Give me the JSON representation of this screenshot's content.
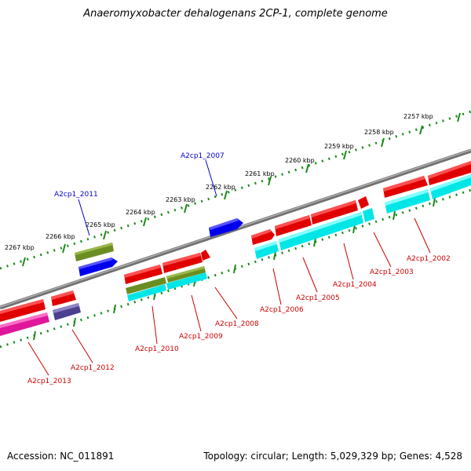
{
  "title": "Anaeromyxobacter dehalogenans 2CP-1, complete genome",
  "accession": "Accession: NC_011891",
  "summary": "Topology: circular; Length: 5,029,329 bp; Genes: 4,528",
  "colors": {
    "backbone": "#808080",
    "ticks": "#1a8a1a",
    "red": "#e00000",
    "cyan": "#00e6e6",
    "olive": "#6b8e23",
    "blue": "#0000ee",
    "magenta": "#e0179a",
    "slate": "#4b3f8f",
    "label_red": "#cc0000",
    "label_blue": "#0000cc"
  },
  "kbp_labels": [
    "2257 kbp",
    "2258 kbp",
    "2259 kbp",
    "2260 kbp",
    "2261 kbp",
    "2262 kbp",
    "2263 kbp",
    "2264 kbp",
    "2265 kbp",
    "2266 kbp",
    "2267 kbp"
  ],
  "gene_labels": [
    "A2cp1_2007",
    "A2cp1_2011",
    "A2cp1_2002",
    "A2cp1_2003",
    "A2cp1_2004",
    "A2cp1_2005",
    "A2cp1_2006",
    "A2cp1_2008",
    "A2cp1_2009",
    "A2cp1_2010",
    "A2cp1_2012",
    "A2cp1_2013"
  ]
}
